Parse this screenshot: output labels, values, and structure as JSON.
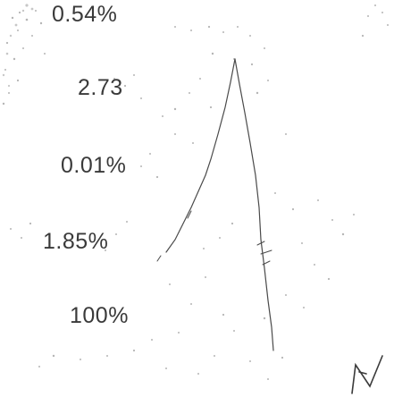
{
  "percentages": {
    "p1": "0.54%",
    "p2": "2.73",
    "p3": "0.01%",
    "p4": "1.85%",
    "p5": "100%"
  },
  "colors": {
    "text": "#3a3a3a",
    "stroke": "#4a4a4a",
    "speckle": "#b5b5b5"
  }
}
